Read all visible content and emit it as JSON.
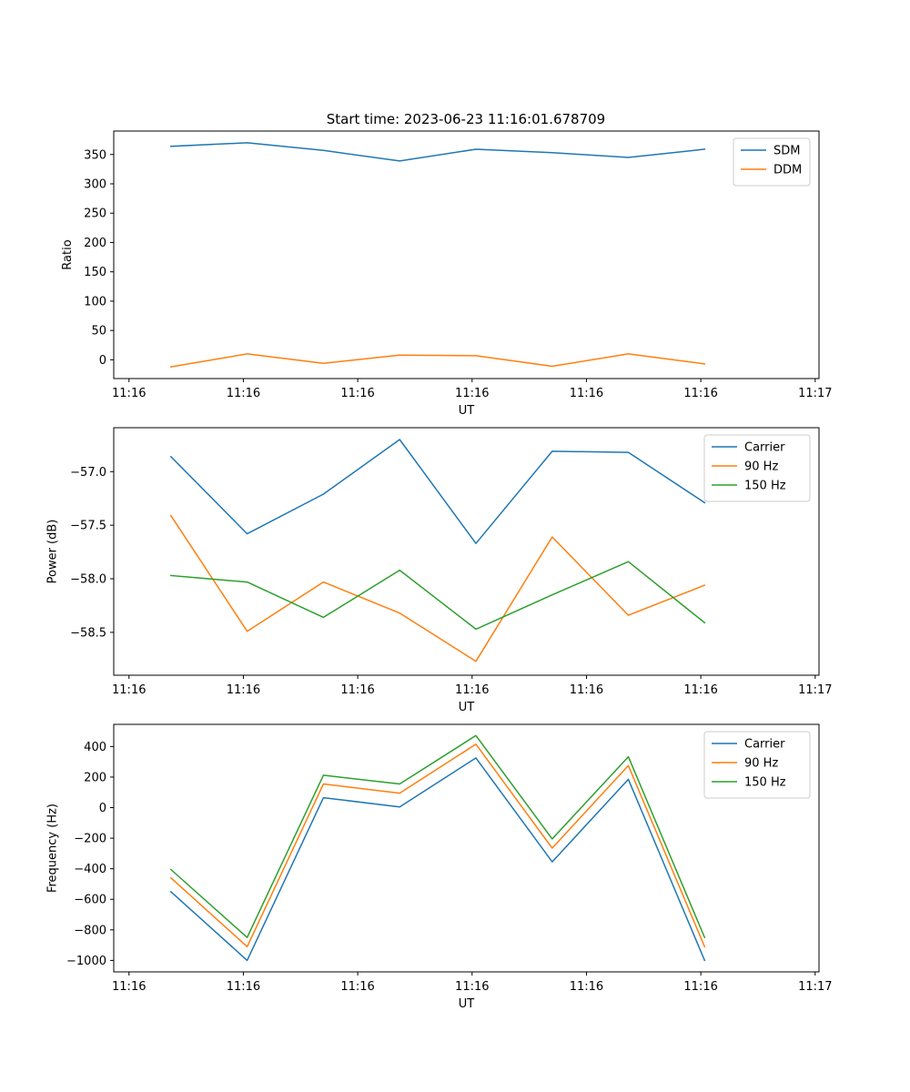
{
  "figure_title": "Start time: 2023-06-23 11:16:01.678709",
  "colors": {
    "blue": "#1f77b4",
    "orange": "#ff7f0e",
    "green": "#2ca02c"
  },
  "chart_data": [
    {
      "type": "line",
      "title": "",
      "xlabel": "UT",
      "ylabel": "Ratio",
      "x": [
        1,
        2,
        3,
        4,
        5,
        6,
        7,
        8
      ],
      "xlim": [
        0.25,
        9.5
      ],
      "x_ticks": [
        0.45,
        1.95,
        3.45,
        4.95,
        6.45,
        7.95,
        9.45
      ],
      "x_tick_labels": [
        "11:16",
        "11:16",
        "11:16",
        "11:16",
        "11:16",
        "11:16",
        "11:17"
      ],
      "ylim": [
        -32,
        390
      ],
      "y_ticks": [
        0,
        50,
        100,
        150,
        200,
        250,
        300,
        350
      ],
      "y_tick_labels": [
        "0",
        "50",
        "100",
        "150",
        "200",
        "250",
        "300",
        "350"
      ],
      "grid": false,
      "legend": "top-right",
      "series": [
        {
          "name": "SDM",
          "color": "#1f77b4",
          "values": [
            364,
            370,
            357,
            339,
            359,
            353,
            345,
            359
          ]
        },
        {
          "name": "DDM",
          "color": "#ff7f0e",
          "values": [
            -12,
            10,
            -6,
            8,
            7,
            -11,
            10,
            -7
          ]
        }
      ]
    },
    {
      "type": "line",
      "title": "",
      "xlabel": "UT",
      "ylabel": "Power (dB)",
      "x": [
        1,
        2,
        3,
        4,
        5,
        6,
        7,
        8
      ],
      "xlim": [
        0.25,
        9.5
      ],
      "x_ticks": [
        0.45,
        1.95,
        3.45,
        4.95,
        6.45,
        7.95,
        9.45
      ],
      "x_tick_labels": [
        "11:16",
        "11:16",
        "11:16",
        "11:16",
        "11:16",
        "11:16",
        "11:17"
      ],
      "ylim": [
        -58.9,
        -56.59
      ],
      "y_ticks": [
        -58.5,
        -58.0,
        -57.5,
        -57.0
      ],
      "y_tick_labels": [
        "−58.5",
        "−58.0",
        "−57.5",
        "−57.0"
      ],
      "grid": false,
      "legend": "top-right",
      "series": [
        {
          "name": "Carrier",
          "color": "#1f77b4",
          "values": [
            -56.86,
            -57.58,
            -57.21,
            -56.7,
            -57.67,
            -56.81,
            -56.82,
            -57.29
          ]
        },
        {
          "name": "90 Hz",
          "color": "#ff7f0e",
          "values": [
            -57.41,
            -58.49,
            -58.03,
            -58.32,
            -58.77,
            -57.61,
            -58.34,
            -58.06
          ]
        },
        {
          "name": "150 Hz",
          "color": "#2ca02c",
          "values": [
            -57.97,
            -58.03,
            -58.36,
            -57.92,
            -58.47,
            -58.15,
            -57.84,
            -58.41
          ]
        }
      ]
    },
    {
      "type": "line",
      "title": "",
      "xlabel": "UT",
      "ylabel": "Frequency (Hz)",
      "x": [
        1,
        2,
        3,
        4,
        5,
        6,
        7,
        8
      ],
      "xlim": [
        0.25,
        9.5
      ],
      "x_ticks": [
        0.45,
        1.95,
        3.45,
        4.95,
        6.45,
        7.95,
        9.45
      ],
      "x_tick_labels": [
        "11:16",
        "11:16",
        "11:16",
        "11:16",
        "11:16",
        "11:16",
        "11:17"
      ],
      "ylim": [
        -1075,
        545
      ],
      "y_ticks": [
        -1000,
        -800,
        -600,
        -400,
        -200,
        0,
        200,
        400
      ],
      "y_tick_labels": [
        "−1000",
        "−800",
        "−600",
        "−400",
        "−200",
        "0",
        "200",
        "400"
      ],
      "grid": false,
      "legend": "top-right",
      "series": [
        {
          "name": "Carrier",
          "color": "#1f77b4",
          "values": [
            -550,
            -1000,
            65,
            5,
            325,
            -355,
            185,
            -1000
          ]
        },
        {
          "name": "90 Hz",
          "color": "#ff7f0e",
          "values": [
            -460,
            -910,
            155,
            95,
            415,
            -265,
            275,
            -910
          ]
        },
        {
          "name": "150 Hz",
          "color": "#2ca02c",
          "values": [
            -405,
            -850,
            212,
            155,
            472,
            -205,
            333,
            -850
          ]
        }
      ]
    }
  ]
}
